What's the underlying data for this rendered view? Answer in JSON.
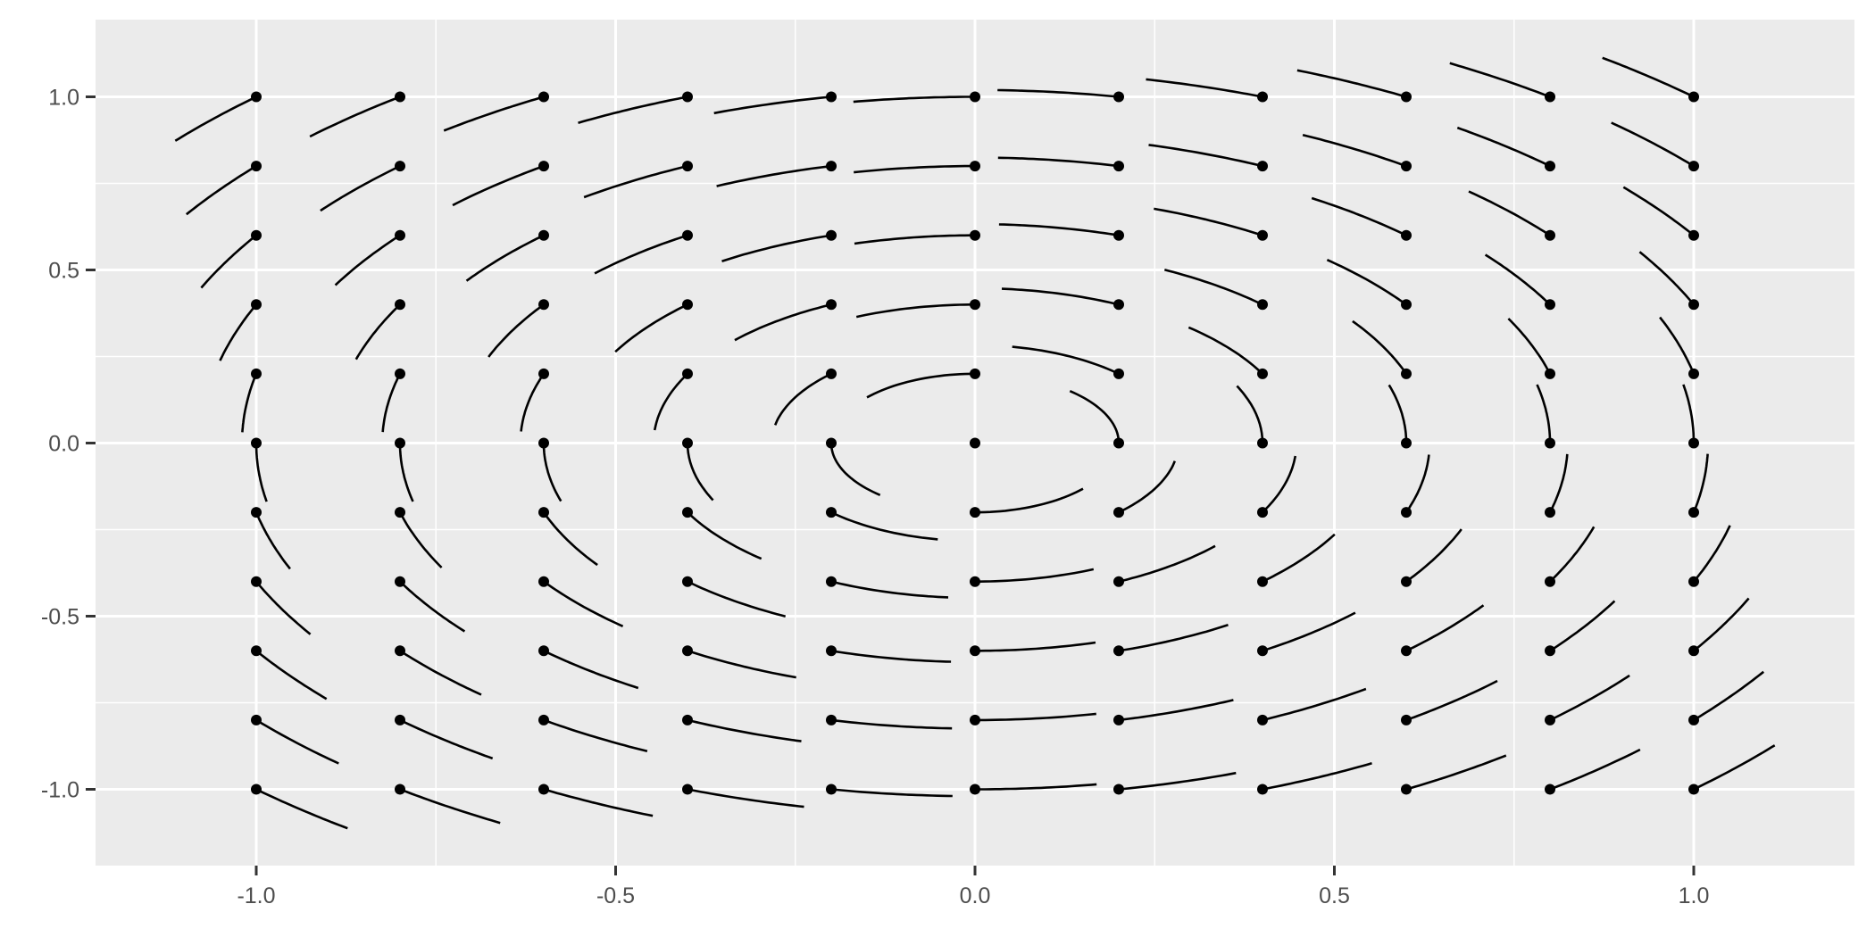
{
  "chart_data": {
    "type": "vector field",
    "title": "",
    "xlabel": "",
    "ylabel": "",
    "xlim": [
      -1.22,
      1.22
    ],
    "ylim": [
      -1.22,
      1.22
    ],
    "x_ticks": [
      -1.0,
      -0.5,
      0.0,
      0.5,
      1.0
    ],
    "y_ticks": [
      -1.0,
      -0.5,
      0.0,
      0.5,
      1.0
    ],
    "x_tick_labels": [
      "-1.0",
      "-0.5",
      "0.0",
      "0.5",
      "1.0"
    ],
    "y_tick_labels": [
      "-1.0",
      "-0.5",
      "0.0",
      "0.5",
      "1.0"
    ],
    "grid": true,
    "grid_x": [
      -1.0,
      -0.8,
      -0.6,
      -0.4,
      -0.2,
      0.0,
      0.2,
      0.4,
      0.6,
      0.8,
      1.0
    ],
    "grid_y": [
      -1.0,
      -0.8,
      -0.6,
      -0.4,
      -0.2,
      0.0,
      0.2,
      0.4,
      0.6,
      0.8,
      1.0
    ],
    "field": {
      "u": "y",
      "v": "-x",
      "rotation": "clockwise"
    },
    "trail_length": 0.17,
    "colors": {
      "panel": "#ebebeb",
      "grid": "#ffffff",
      "mark": "#000000",
      "tick_text": "#4d4d4d"
    }
  }
}
